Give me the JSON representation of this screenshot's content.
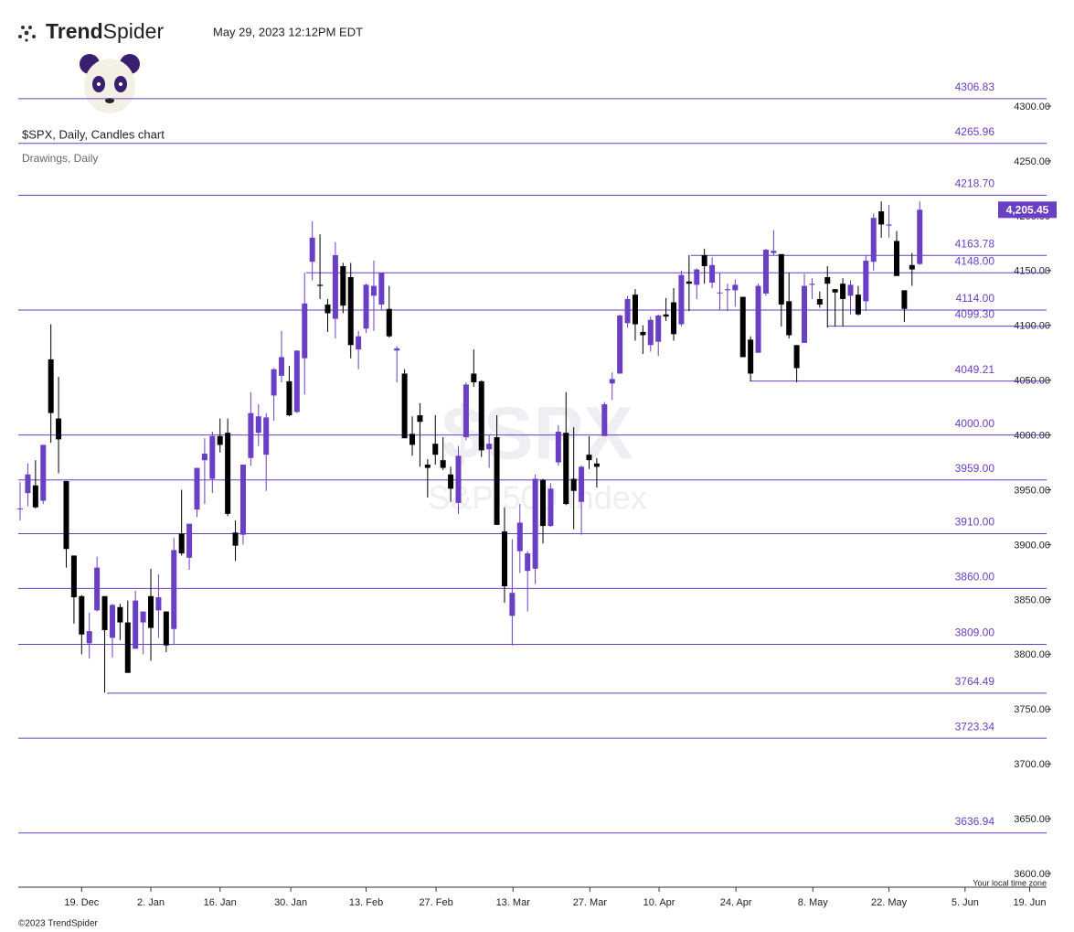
{
  "header": {
    "brand": [
      "Trend",
      "Spider"
    ],
    "timestamp": "May 29, 2023 12:12PM EDT"
  },
  "chart_data": {
    "type": "candlestick",
    "title": "$SPX, Daily, Candles chart",
    "subtitle": "Drawings, Daily",
    "watermark": {
      "symbol": "$SPX",
      "name": "S&P 500 Index"
    },
    "up_color": "#6b3fc4",
    "down_color": "#000000",
    "level_color": "#6b3fc4",
    "x": [
      "7. Dec",
      "8. Dec",
      "9. Dec",
      "12. Dec",
      "13. Dec",
      "14. Dec",
      "15. Dec",
      "16. Dec",
      "19. Dec",
      "20. Dec",
      "21. Dec",
      "22. Dec",
      "23. Dec",
      "27. Dec",
      "28. Dec",
      "29. Dec",
      "30. Dec",
      "3. Jan",
      "4. Jan",
      "5. Jan",
      "6. Jan",
      "9. Jan",
      "10. Jan",
      "11. Jan",
      "12. Jan",
      "13. Jan",
      "17. Jan",
      "18. Jan",
      "19. Jan",
      "20. Jan",
      "23. Jan",
      "24. Jan",
      "25. Jan",
      "26. Jan",
      "27. Jan",
      "30. Jan",
      "31. Jan",
      "1. Feb",
      "2. Feb",
      "3. Feb",
      "6. Feb",
      "7. Feb",
      "8. Feb",
      "9. Feb",
      "10. Feb",
      "13. Feb",
      "14. Feb",
      "15. Feb",
      "16. Feb",
      "17. Feb",
      "21. Feb",
      "22. Feb",
      "23. Feb",
      "24. Feb",
      "27. Feb",
      "28. Feb",
      "1. Mar",
      "2. Mar",
      "3. Mar",
      "6. Mar",
      "7. Mar",
      "8. Mar",
      "9. Mar",
      "10. Mar",
      "13. Mar",
      "14. Mar",
      "15. Mar",
      "16. Mar",
      "17. Mar",
      "20. Mar",
      "21. Mar",
      "22. Mar",
      "23. Mar",
      "24. Mar",
      "27. Mar",
      "28. Mar",
      "29. Mar",
      "30. Mar",
      "31. Mar",
      "3. Apr",
      "4. Apr",
      "5. Apr",
      "6. Apr",
      "10. Apr",
      "11. Apr",
      "12. Apr",
      "13. Apr",
      "14. Apr",
      "17. Apr",
      "18. Apr",
      "19. Apr",
      "20. Apr",
      "21. Apr",
      "24. Apr",
      "25. Apr",
      "26. Apr",
      "27. Apr",
      "28. Apr",
      "1. May",
      "2. May",
      "3. May",
      "4. May",
      "5. May",
      "8. May",
      "9. May",
      "10. May",
      "11. May",
      "12. May",
      "15. May",
      "16. May",
      "17. May",
      "18. May",
      "19. May",
      "22. May",
      "23. May",
      "24. May",
      "25. May",
      "26. May"
    ],
    "open": [
      3933,
      3947,
      3954,
      3940,
      4069,
      4015,
      3958,
      3890,
      3853,
      3810,
      3840,
      3853,
      3815,
      3843,
      3829,
      3805,
      3829,
      3853,
      3840,
      3839,
      3823,
      3910,
      3888,
      3932,
      3977,
      3960,
      3999,
      4002,
      3911,
      3909,
      3979,
      4002,
      3982,
      4036,
      4054,
      4049,
      4021,
      4070,
      4158,
      4137,
      4119,
      4106,
      4154,
      4144,
      4078,
      4097,
      4127,
      4119,
      4115,
      4077,
      4056,
      4001,
      4018,
      3973,
      3992,
      3977,
      3964,
      3938,
      3998,
      4056,
      4049,
      3987,
      3998,
      3912,
      3835,
      3894,
      3876,
      3878,
      3959,
      3917,
      3975,
      4002,
      3960,
      3939,
      3982,
      3974,
      3999,
      4047,
      4056,
      4102,
      4128,
      4094,
      4082,
      4085,
      4110,
      4121,
      4101,
      4140,
      4137,
      4164,
      4139,
      4130,
      4132,
      4132,
      4126,
      4087,
      4075,
      4129,
      4166,
      4165,
      4122,
      4082,
      4084,
      4137,
      4124,
      4144,
      4133,
      4138,
      4127,
      4128,
      4122,
      4158,
      4204,
      4191,
      4177,
      4132,
      4155,
      4156
    ],
    "high": [
      3957,
      3974,
      3977,
      3991,
      4101,
      4053,
      3958,
      3890,
      3854,
      3838,
      3889,
      3853,
      3846,
      3846,
      3849,
      3858,
      3839,
      3878,
      3873,
      3839,
      3906,
      3950,
      3919,
      3970,
      3997,
      4003,
      4015,
      4015,
      3922,
      3973,
      4039,
      4028,
      4020,
      4061,
      4095,
      4063,
      4077,
      4148,
      4195,
      4183,
      4124,
      4176,
      4157,
      4157,
      4095,
      4138,
      4159,
      4148,
      4136,
      4081,
      4060,
      4017,
      4029,
      3978,
      4018,
      3998,
      3971,
      3990,
      4048,
      4078,
      4050,
      4000,
      4018,
      3934,
      3905,
      3937,
      3894,
      3964,
      3960,
      3956,
      4009,
      4039,
      4007,
      3972,
      3999,
      3979,
      4030,
      4057,
      4110,
      4127,
      4133,
      4100,
      4108,
      4110,
      4125,
      4134,
      4150,
      4164,
      4152,
      4170,
      4162,
      4148,
      4138,
      4142,
      4126,
      4090,
      4138,
      4170,
      4187,
      4165,
      4148,
      4082,
      4147,
      4143,
      4131,
      4154,
      4133,
      4143,
      4141,
      4136,
      4164,
      4202,
      4213,
      4210,
      4186,
      4132,
      4166,
      4213
    ],
    "low": [
      3922,
      3935,
      3933,
      3937,
      3993,
      3965,
      3879,
      3828,
      3800,
      3796,
      3839,
      3765,
      3797,
      3813,
      3783,
      3805,
      3800,
      3794,
      3815,
      3802,
      3809,
      3890,
      3877,
      3925,
      3937,
      3947,
      3984,
      3926,
      3885,
      3900,
      3972,
      3990,
      3949,
      4013,
      4048,
      4017,
      4020,
      4037,
      4141,
      4124,
      4094,
      4088,
      4111,
      4070,
      4060,
      4093,
      4095,
      4114,
      4089,
      4048,
      3997,
      3981,
      3971,
      3943,
      3973,
      3968,
      3939,
      3928,
      3995,
      4044,
      3980,
      3970,
      3918,
      3847,
      3808,
      3874,
      3839,
      3864,
      3901,
      3916,
      3972,
      3936,
      3914,
      3909,
      3969,
      3952,
      3999,
      4032,
      4056,
      4098,
      4086,
      4074,
      4076,
      4072,
      4104,
      4086,
      4099,
      4113,
      4124,
      4138,
      4134,
      4114,
      4113,
      4117,
      4071,
      4049,
      4075,
      4127,
      4164,
      4099,
      4088,
      4048,
      4084,
      4124,
      4116,
      4098,
      4099,
      4099,
      4110,
      4109,
      4113,
      4150,
      4180,
      4180,
      4145,
      4103,
      4136,
      4155
    ],
    "close": [
      3933,
      3964,
      3934,
      3991,
      4020,
      3996,
      3896,
      3852,
      3818,
      3821,
      3879,
      3822,
      3845,
      3829,
      3783,
      3849,
      3839,
      3824,
      3852,
      3808,
      3895,
      3892,
      3919,
      3970,
      3983,
      3999,
      3991,
      3928,
      3899,
      3973,
      4020,
      4017,
      4016,
      4060,
      4071,
      4018,
      4077,
      4120,
      4180,
      4136,
      4111,
      4164,
      4118,
      4082,
      4090,
      4137,
      4136,
      4148,
      4090,
      4079,
      3997,
      3991,
      4012,
      3970,
      3982,
      3970,
      3951,
      3981,
      4046,
      4048,
      3986,
      3992,
      3918,
      3862,
      3856,
      3920,
      3892,
      3960,
      3917,
      3951,
      4003,
      3937,
      3949,
      3971,
      3977,
      3971,
      4028,
      4051,
      4109,
      4124,
      4101,
      4091,
      4105,
      4109,
      4108,
      4092,
      4146,
      4138,
      4151,
      4154,
      4155,
      4130,
      4133,
      4137,
      4071,
      4056,
      4136,
      4169,
      4168,
      4119,
      4091,
      4061,
      4136,
      4138,
      4119,
      4138,
      4130,
      4124,
      4137,
      4110,
      4159,
      4198,
      4192,
      4192,
      4145,
      4115,
      4151,
      4205.45
    ],
    "xlim": [
      -0.24,
      133.5
    ],
    "xticks": [
      {
        "value": 8,
        "label": "19. Dec"
      },
      {
        "value": 17,
        "label": "2. Jan"
      },
      {
        "value": 26,
        "label": "16. Jan"
      },
      {
        "value": 35.2,
        "label": "30. Jan"
      },
      {
        "value": 45,
        "label": "13. Feb"
      },
      {
        "value": 54.1,
        "label": "27. Feb"
      },
      {
        "value": 64.1,
        "label": "13. Mar"
      },
      {
        "value": 74.1,
        "label": "27. Mar"
      },
      {
        "value": 83.1,
        "label": "10. Apr"
      },
      {
        "value": 93.1,
        "label": "24. Apr"
      },
      {
        "value": 103.1,
        "label": "8. May"
      },
      {
        "value": 113,
        "label": "22. May"
      },
      {
        "value": 122.9,
        "label": "5. Jun"
      },
      {
        "value": 131.3,
        "label": "19. Jun"
      }
    ],
    "ylim": [
      3587.5,
      4321.7
    ],
    "yticks": [
      {
        "value": 3600,
        "label": "3600.00"
      },
      {
        "value": 3650,
        "label": "3650.00"
      },
      {
        "value": 3700,
        "label": "3700.00"
      },
      {
        "value": 3750,
        "label": "3750.00"
      },
      {
        "value": 3800,
        "label": "3800.00"
      },
      {
        "value": 3850,
        "label": "3850.00"
      },
      {
        "value": 3900,
        "label": "3900.00"
      },
      {
        "value": 3950,
        "label": "3950.00"
      },
      {
        "value": 4000,
        "label": "4000.00"
      },
      {
        "value": 4050,
        "label": "4050.00"
      },
      {
        "value": 4100,
        "label": "4100.00"
      },
      {
        "value": 4150,
        "label": "4150.00"
      },
      {
        "value": 4200,
        "label": "4200.00"
      },
      {
        "value": 4250,
        "label": "4250.00"
      },
      {
        "value": 4300,
        "label": "4300.00"
      }
    ],
    "levels": [
      {
        "value": 4306.83
      },
      {
        "value": 4265.96
      },
      {
        "value": 4218.7,
        "label": "4218.70"
      },
      {
        "value": 4163.78,
        "from": 87.2
      },
      {
        "value": 4148,
        "label": "4148.00",
        "from": 37.2
      },
      {
        "value": 4114,
        "label": "4114.00"
      },
      {
        "value": 4099.3,
        "label": "4099.30",
        "from": 105
      },
      {
        "value": 4049.21,
        "from": 94.9
      },
      {
        "value": 4000,
        "label": "4000.00"
      },
      {
        "value": 3959,
        "label": "3959.00"
      },
      {
        "value": 3910,
        "label": "3910.00"
      },
      {
        "value": 3860,
        "label": "3860.00"
      },
      {
        "value": 3809,
        "label": "3809.00"
      },
      {
        "value": 3764.49,
        "from": 11.3
      },
      {
        "value": 3723.34
      },
      {
        "value": 3636.94
      }
    ],
    "last_price": {
      "value": 4205.45,
      "label": "4,205.45"
    },
    "timezone_note": "Your local time zone"
  },
  "footer": {
    "copyright": "©2023 TrendSpider"
  }
}
